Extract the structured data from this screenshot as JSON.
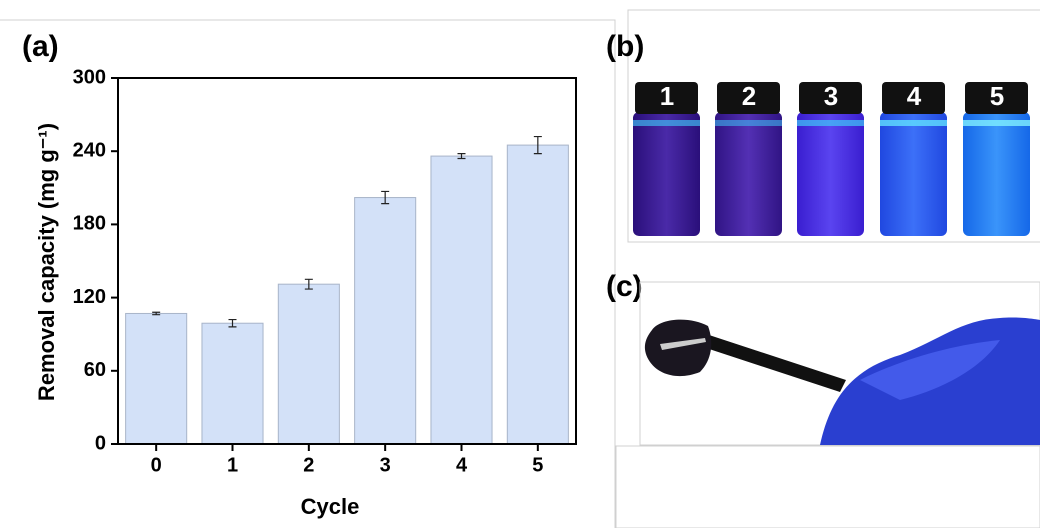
{
  "chart_data": {
    "type": "bar",
    "panel_label": "(a)",
    "x_label": "Cycle",
    "y_label": "Removal capacity (mg g⁻¹)",
    "categories": [
      "0",
      "1",
      "2",
      "3",
      "4",
      "5"
    ],
    "values": [
      107,
      99,
      131,
      202,
      236,
      245
    ],
    "errors": [
      1,
      3,
      4,
      5,
      2,
      7
    ],
    "color": "#d3e1f8",
    "ylim": [
      0,
      300
    ],
    "yticks": [
      0,
      60,
      120,
      180,
      240,
      300
    ]
  },
  "photo_b": {
    "panel_label": "(b)",
    "vial_labels": [
      "1",
      "2",
      "3",
      "4",
      "5"
    ]
  },
  "photo_c": {
    "panel_label": "(c)"
  }
}
